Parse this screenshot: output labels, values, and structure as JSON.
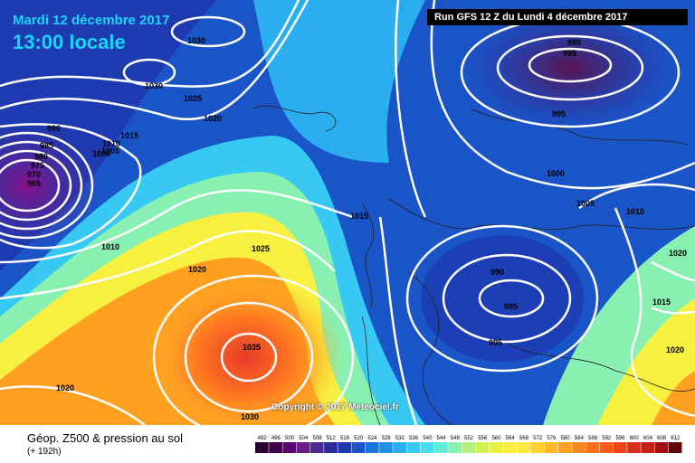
{
  "header": {
    "date": "Mardi 12 décembre 2017",
    "time": "13:00 locale",
    "run": "Run GFS 12 Z du Lundi 4 décembre 2017"
  },
  "copyright": "Copyright © 2017 Meteociel.fr",
  "legend": {
    "title": "Géop. Z500 & pression au sol",
    "subtitle": "(+ 192h)",
    "scale_values": [
      "492",
      "496",
      "500",
      "504",
      "508",
      "512",
      "516",
      "520",
      "524",
      "528",
      "532",
      "536",
      "540",
      "544",
      "548",
      "552",
      "556",
      "560",
      "564",
      "568",
      "572",
      "576",
      "580",
      "584",
      "588",
      "592",
      "596",
      "600",
      "604",
      "608",
      "612"
    ],
    "scale_colors": [
      "#2a0030",
      "#40004d",
      "#5a0070",
      "#6b1a8a",
      "#4a2a90",
      "#2a2a9a",
      "#1e3ab0",
      "#1a55c8",
      "#1a72dc",
      "#1e90e8",
      "#2aaef0",
      "#38c8f4",
      "#4adcf0",
      "#60ecd8",
      "#88f0b0",
      "#b0f080",
      "#d0f050",
      "#e8f040",
      "#f8f040",
      "#ffe840",
      "#ffd030",
      "#ffb828",
      "#ffa020",
      "#ff8820",
      "#ff7018",
      "#ff5a18",
      "#f04418",
      "#d83018",
      "#c02018",
      "#a01010",
      "#600808"
    ]
  },
  "isobars": [
    "1030",
    "1030",
    "1025",
    "1020",
    "1015",
    "990",
    "985",
    "980",
    "975",
    "970",
    "965",
    "1010",
    "1005",
    "1000",
    "1010",
    "1020",
    "1025",
    "1035",
    "1020",
    "1030",
    "1015",
    "990",
    "985",
    "995",
    "1000",
    "1005",
    "1010",
    "990",
    "985",
    "995",
    "1020",
    "1015",
    "1020"
  ]
}
